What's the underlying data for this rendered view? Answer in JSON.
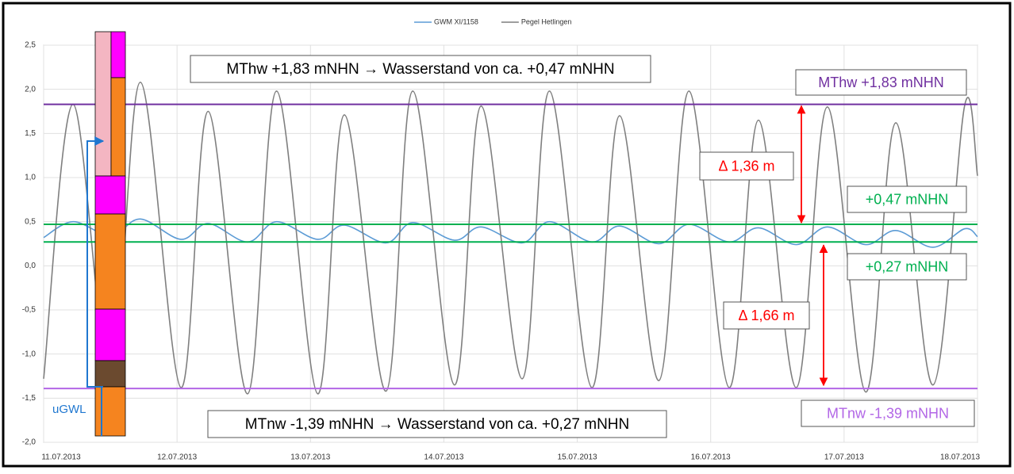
{
  "chart_data": {
    "type": "line",
    "x": [
      0,
      5.3,
      12.1,
      17.4,
      24.7,
      29.6,
      36.7,
      41.9,
      49.3,
      54.1,
      61.6,
      66.4,
      73.9,
      78.7,
      86.1,
      91.0,
      98.6,
      103.6,
      110.7,
      116.1,
      123.3,
      128.6,
      135.4,
      141.0,
      147.9,
      153.3,
      160.0,
      165.7,
      168
    ],
    "series": [
      {
        "name": "GWM XI/1158",
        "color": "#5b9bd5",
        "values": [
          0.32,
          0.5,
          0.34,
          0.53,
          0.3,
          0.48,
          0.27,
          0.5,
          0.3,
          0.46,
          0.26,
          0.49,
          0.29,
          0.44,
          0.26,
          0.5,
          0.27,
          0.45,
          0.25,
          0.47,
          0.27,
          0.43,
          0.24,
          0.44,
          0.24,
          0.4,
          0.21,
          0.42,
          0.33
        ]
      },
      {
        "name": "Pegel Hetlingen",
        "color": "#7f7f7f",
        "values": [
          -1.28,
          1.83,
          -1.35,
          2.08,
          -1.38,
          1.75,
          -1.45,
          1.98,
          -1.45,
          1.71,
          -1.42,
          1.98,
          -1.35,
          1.81,
          -1.28,
          1.98,
          -1.38,
          1.7,
          -1.3,
          1.98,
          -1.38,
          1.65,
          -1.38,
          1.8,
          -1.43,
          1.62,
          -1.35,
          1.82,
          1.02
        ]
      }
    ],
    "xlim": [
      0,
      168
    ],
    "xticks": [
      {
        "value": 0,
        "label": "11.07.2013"
      },
      {
        "value": 24,
        "label": "12.07.2013"
      },
      {
        "value": 48,
        "label": "13.07.2013"
      },
      {
        "value": 72,
        "label": "14.07.2013"
      },
      {
        "value": 96,
        "label": "15.07.2013"
      },
      {
        "value": 120,
        "label": "16.07.2013"
      },
      {
        "value": 144,
        "label": "17.07.2013"
      },
      {
        "value": 168,
        "label": "18.07.2013"
      }
    ],
    "ylim": [
      -2.0,
      2.5
    ],
    "yticks": [
      {
        "value": -2.0,
        "label": "-2,0"
      },
      {
        "value": -1.5,
        "label": "-1,5"
      },
      {
        "value": -1.0,
        "label": "-1,0"
      },
      {
        "value": -0.5,
        "label": "-0,5"
      },
      {
        "value": 0,
        "label": "0,0"
      },
      {
        "value": 0.5,
        "label": "0,5"
      },
      {
        "value": 1.0,
        "label": "1,0"
      },
      {
        "value": 1.5,
        "label": "1,5"
      },
      {
        "value": 2.0,
        "label": "2,0"
      },
      {
        "value": 2.5,
        "label": "2,5"
      }
    ],
    "grid": true,
    "legend": "top",
    "reference_lines": [
      {
        "value": 1.83,
        "color": "#7030a0",
        "label": "MThw +1,83 mNHN"
      },
      {
        "value": -1.39,
        "color": "#b266e6",
        "label": "MTnw -1,39 mNHN"
      },
      {
        "value": 0.47,
        "color": "#00b050",
        "label": "+0,47 mNHN"
      },
      {
        "value": 0.27,
        "color": "#00b050",
        "label": "+0,27 mNHN"
      }
    ],
    "annotations": [
      {
        "text": "MThw +1,83 mNHN → Wasserstand von ca. +0,47 mNHN"
      },
      {
        "text": "MTnw -1,39 mNHN → Wasserstand von ca. +0,27 mNHN"
      },
      {
        "text": "Δ 1,36 m"
      },
      {
        "text": "Δ 1,66 m"
      },
      {
        "text": "uGWL"
      }
    ]
  }
}
